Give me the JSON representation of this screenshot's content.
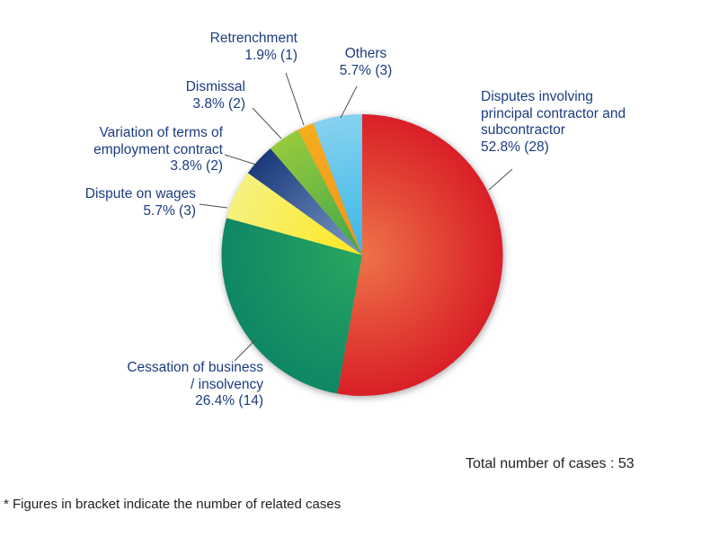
{
  "chart_data": {
    "type": "pie",
    "title": "",
    "total_cases": 53,
    "total_label": "Total number of cases : 53",
    "footnote": "* Figures in bracket indicate the number of related cases",
    "label_color": "#1C3C80",
    "note_color": "#231F20",
    "start_angle_deg": 0,
    "direction": "clockwise",
    "legend": "none",
    "slices": [
      {
        "name": "Disputes involving\nprincipal contractor and\nsubcontractor",
        "pct": 52.8,
        "count": 28,
        "value_label": "52.8% (28)",
        "color_inner": "#EE7348",
        "color_outer": "#D91F27"
      },
      {
        "name": "Cessation of business\n/ insolvency",
        "pct": 26.4,
        "count": 14,
        "value_label": "26.4% (14)",
        "color_inner": "#28A75F",
        "color_outer": "#0E8765"
      },
      {
        "name": "Dispute on wages",
        "pct": 5.7,
        "count": 3,
        "value_label": "5.7% (3)",
        "color_inner": "#FFE javascript81F",
        "color_outer": "#F5F17E"
      },
      {
        "name": "Variation of terms of\nemployment contract",
        "pct": 3.8,
        "count": 2,
        "value_label": "3.8% (2)",
        "color_inner": "#7C9CC9",
        "color_outer": "#1B3A7B"
      },
      {
        "name": "Dismissal",
        "pct": 3.8,
        "count": 2,
        "value_label": "3.8% (2)",
        "color_inner": "#3FA64B",
        "color_outer": "#97CA3D"
      },
      {
        "name": "Retrenchment",
        "pct": 1.9,
        "count": 1,
        "value_label": "1.9% (1)",
        "color_inner": "#F09321",
        "color_outer": "#F6AD1D"
      },
      {
        "name": "Others",
        "pct": 5.7,
        "count": 3,
        "value_label": "5.7% (3)",
        "color_inner": "#3AB6E5",
        "color_outer": "#86D2F0"
      }
    ]
  }
}
